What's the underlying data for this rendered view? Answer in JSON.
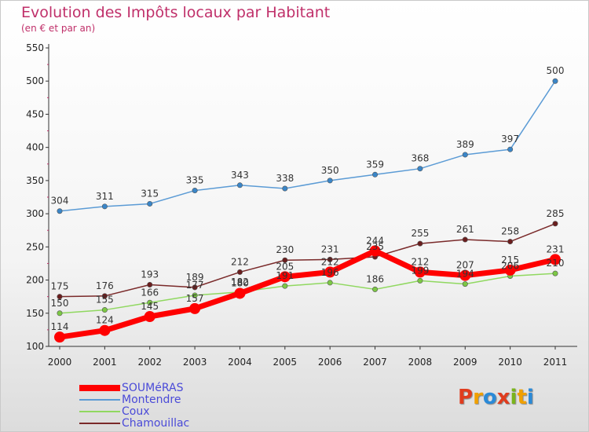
{
  "header": {
    "title": "Evolution des Impôts locaux par Habitant",
    "subtitle": "(en € et par an)"
  },
  "logo": {
    "text": "Proxiti",
    "letters": [
      {
        "ch": "P",
        "color": "#e03c1e"
      },
      {
        "ch": "r",
        "color": "#f0a000"
      },
      {
        "ch": "o",
        "color": "#2a8ad8"
      },
      {
        "ch": "x",
        "color": "#e03c1e"
      },
      {
        "ch": "i",
        "color": "#7ab41c"
      },
      {
        "ch": "t",
        "color": "#f0a000"
      },
      {
        "ch": "i",
        "color": "#2a8ad8"
      }
    ]
  },
  "chart_data": {
    "type": "line",
    "title": "Evolution des Impôts locaux par Habitant",
    "subtitle": "(en € et par an)",
    "categories": [
      "2000",
      "2001",
      "2002",
      "2003",
      "2004",
      "2005",
      "2006",
      "2007",
      "2008",
      "2009",
      "2010",
      "2011"
    ],
    "ylim": [
      100,
      550
    ],
    "yticks": [
      100,
      150,
      200,
      250,
      300,
      350,
      400,
      450,
      500,
      550
    ],
    "grid": false,
    "legend_position": "bottom-left",
    "series": [
      {
        "name": "SOUMéRAS",
        "color": "#ff0000",
        "marker_color": "#ff0000",
        "thick": true,
        "values": [
          114,
          124,
          145,
          157,
          180,
          205,
          212,
          244,
          212,
          207,
          215,
          231
        ]
      },
      {
        "name": "Montendre",
        "color": "#5b9bd5",
        "marker_color": "#3a86c8",
        "thick": false,
        "values": [
          304,
          311,
          315,
          335,
          343,
          338,
          350,
          359,
          368,
          389,
          397,
          500
        ]
      },
      {
        "name": "Coux",
        "color": "#90d860",
        "marker_color": "#7cc844",
        "thick": false,
        "values": [
          150,
          155,
          166,
          177,
          182,
          191,
          196,
          186,
          199,
          194,
          206,
          210
        ]
      },
      {
        "name": "Chamouillac",
        "color": "#7a2a2a",
        "marker_color": "#6a1e1e",
        "thick": false,
        "values": [
          175,
          176,
          193,
          189,
          212,
          230,
          231,
          235,
          255,
          261,
          258,
          285
        ]
      }
    ],
    "data_labels": [
      {
        "values": [
          "114",
          "124",
          "145",
          "157",
          "180",
          "205",
          "212",
          "244",
          "212",
          "207",
          "215",
          "231"
        ]
      },
      {
        "values": [
          "304",
          "311",
          "315",
          "335",
          "343",
          "338",
          "350",
          "359",
          "368",
          "389",
          "397",
          "500"
        ]
      },
      {
        "values": [
          "150",
          "155",
          "166",
          "177",
          "182",
          "191",
          "196",
          "186",
          "199",
          "194",
          "206",
          "210"
        ]
      },
      {
        "values": [
          "175",
          "176",
          "193",
          "189",
          "212",
          "230",
          "231",
          "235",
          "255",
          "261",
          "258",
          "285"
        ]
      }
    ]
  }
}
